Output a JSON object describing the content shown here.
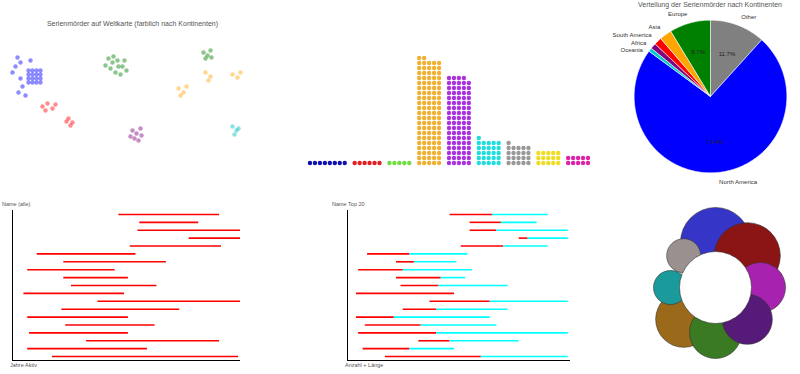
{
  "chart_data": [
    {
      "type": "scatter",
      "title": "Serienmörder auf Weltkarte (farblich nach Kontinenten)",
      "xlim": [
        0,
        260
      ],
      "ylim": [
        0,
        140
      ],
      "tick_labels": false,
      "series": [
        {
          "color": "blue",
          "x": [
            17,
            20,
            15,
            22,
            18,
            25,
            12,
            30,
            20,
            28,
            32,
            36,
            40,
            28,
            32,
            36,
            40,
            28,
            32,
            36,
            40,
            28,
            32,
            36,
            40
          ],
          "y": [
            113,
            108,
            104,
            84,
            78,
            75,
            98,
            110,
            92,
            100,
            100,
            100,
            100,
            96,
            96,
            96,
            96,
            92,
            92,
            92,
            92,
            88,
            88,
            88,
            88
          ]
        },
        {
          "color": "green",
          "x": [
            108,
            112,
            117,
            122,
            110,
            115,
            120,
            126,
            105,
            118,
            113,
            124,
            203,
            207,
            210,
            205,
            211
          ],
          "y": [
            112,
            108,
            110,
            104,
            102,
            98,
            96,
            100,
            105,
            104,
            114,
            110,
            118,
            115,
            120,
            112,
            113
          ]
        },
        {
          "color": "red",
          "x": [
            42,
            47,
            52,
            45,
            55,
            68,
            72,
            70,
            66
          ],
          "y": [
            64,
            67,
            62,
            60,
            66,
            52,
            48,
            45,
            49
          ]
        },
        {
          "color": "purple",
          "x": [
            132,
            136,
            140,
            134,
            138,
            130,
            141
          ],
          "y": [
            40,
            37,
            42,
            32,
            30,
            34,
            35
          ]
        },
        {
          "color": "orange",
          "x": [
            178,
            183,
            186,
            180,
            205,
            210,
            208,
            232,
            237,
            240
          ],
          "y": [
            82,
            78,
            84,
            75,
            98,
            94,
            90,
            96,
            93,
            98
          ]
        },
        {
          "color": "#00bcbc",
          "x": [
            232,
            236,
            234,
            238
          ],
          "y": [
            44,
            40,
            36,
            42
          ]
        }
      ]
    },
    {
      "type": "waffle",
      "tick_labels": false,
      "values": [
        8,
        6,
        5,
        107,
        89,
        26,
        21,
        15,
        10
      ],
      "colors": [
        "#1010b0",
        "#e02020",
        "#70dd40",
        "#f0b030",
        "#aa33dd",
        "#22dddd",
        "#999999",
        "#eedd22",
        "#dd22aa"
      ]
    },
    {
      "type": "pie",
      "title": "Verteilung der Serienmörder nach Kontinenten",
      "categories": [
        "Other",
        "North America",
        "Oceania",
        "Africa",
        "South America",
        "Asia",
        "Europe"
      ],
      "values": [
        11.7,
        73.4,
        0.8,
        1.2,
        1.6,
        2.6,
        8.7
      ],
      "colors": [
        "grey",
        "blue",
        "#00cccc",
        "purple",
        "red",
        "orange",
        "green"
      ],
      "data_labels": true,
      "value_labels": [
        "11.7%",
        "73.4%",
        null,
        null,
        null,
        null,
        "8.7%"
      ]
    },
    {
      "type": "range",
      "x_label": "Jahre Aktiv",
      "y_label": "Name (alle)",
      "xlim": [
        1900,
        2020
      ],
      "tick_labels": false,
      "color": "red",
      "start": [
        1956,
        1967,
        1966,
        1993,
        1962,
        1913,
        1927,
        1908,
        1927,
        1931,
        1906,
        1945,
        1926,
        1908,
        1928,
        1909,
        1939,
        1908,
        1921
      ],
      "end": [
        2009,
        1998,
        2020,
        2020,
        2010,
        1965,
        1981,
        1954,
        1961,
        1976,
        1959,
        2020,
        1988,
        1961,
        1975,
        1961,
        2009,
        1971,
        2019
      ]
    },
    {
      "type": "range",
      "x_label": "Anzahl + Länge",
      "y_label": "Name Top 20",
      "xlim": [
        0,
        100
      ],
      "tick_labels": false,
      "stacked": true,
      "start": [
        46,
        55,
        55,
        77,
        51,
        9,
        22,
        5,
        22,
        24,
        4,
        37,
        25,
        4,
        8,
        5,
        32,
        7,
        17
      ],
      "series": [
        {
          "color": "red",
          "values": [
            19,
            14,
            12,
            4,
            19,
            19,
            8,
            20,
            20,
            17,
            44,
            27,
            15,
            17,
            25,
            35,
            14,
            21,
            43
          ]
        },
        {
          "color": "cyan",
          "values": [
            25,
            16,
            32,
            18,
            20,
            26,
            19,
            31,
            11,
            31,
            0,
            35,
            32,
            43,
            34,
            59,
            31,
            20,
            39
          ]
        }
      ]
    },
    {
      "type": "bubble",
      "tick_labels": false,
      "values": [
        35,
        33,
        25,
        25,
        26,
        28,
        17,
        17
      ],
      "colors": [
        "#3535c8",
        "#8b1414",
        "#a822b0",
        "#561a78",
        "#3a7a22",
        "#9a6a1a",
        "#1a9a9a",
        "#9a9090"
      ]
    }
  ]
}
